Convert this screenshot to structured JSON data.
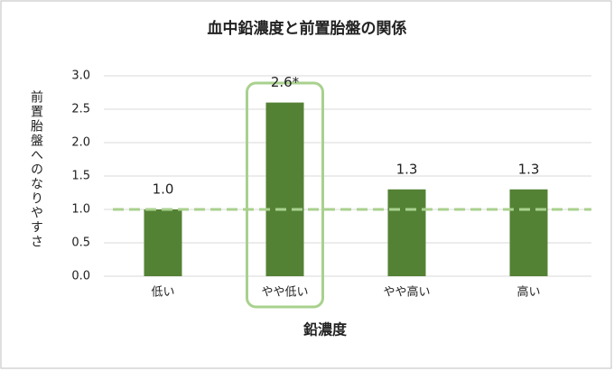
{
  "chart_data": {
    "type": "bar",
    "title": "血中鉛濃度と前置胎盤の関係",
    "y_label": "前置胎盤へのなりやすさ",
    "x_label": "鉛濃度",
    "categories": [
      "低い",
      "やや低い",
      "やや高い",
      "高い"
    ],
    "values": [
      1.0,
      2.6,
      1.3,
      1.3
    ],
    "value_labels": [
      "1.0",
      "2.6*",
      "1.3",
      "1.3"
    ],
    "color": "#548235",
    "reference_line": 1.0,
    "reference_color": "#a9d18e",
    "highlight_index": 1,
    "highlight_color": "#a9d18e",
    "ylim": [
      0,
      3
    ],
    "yticks": [
      {
        "value": 0,
        "label": "0.0"
      },
      0.5,
      {
        "value": 1,
        "label": "1.0"
      },
      1.5,
      {
        "value": 2,
        "label": "2.0"
      },
      2.5,
      {
        "value": 3,
        "label": "3.0"
      }
    ],
    "grid": true
  }
}
